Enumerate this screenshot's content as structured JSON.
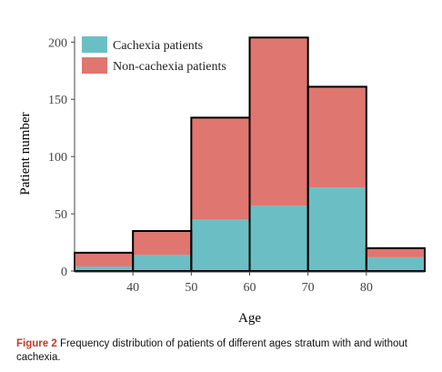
{
  "chart_data": {
    "type": "bar",
    "stacked": true,
    "bins": [
      {
        "from": 30,
        "to": 40
      },
      {
        "from": 40,
        "to": 50
      },
      {
        "from": 50,
        "to": 60
      },
      {
        "from": 60,
        "to": 70
      },
      {
        "from": 70,
        "to": 80
      },
      {
        "from": 80,
        "to": 90
      }
    ],
    "series": [
      {
        "name": "Cachexia patients",
        "values": [
          4,
          14,
          45,
          57,
          73,
          12
        ],
        "color": "#6bbfc4"
      },
      {
        "name": "Non-cachexia patients",
        "values": [
          12,
          21,
          89,
          147,
          88,
          8
        ],
        "color": "#e07670"
      }
    ],
    "xlabel": "Age",
    "ylabel": "Patient number",
    "xticks": [
      "40",
      "50",
      "60",
      "70",
      "80"
    ],
    "xtick_values": [
      40,
      50,
      60,
      70,
      80
    ],
    "yticks": [
      "0",
      "50",
      "100",
      "150",
      "200"
    ],
    "ytick_values": [
      0,
      50,
      100,
      150,
      200
    ],
    "xlim": [
      30,
      90
    ],
    "ylim": [
      0,
      205
    ],
    "grid": false,
    "legend_position": "top-left"
  },
  "caption": {
    "label": "Figure 2",
    "text": "Frequency distribution of patients of different ages stratum with and without cachexia."
  }
}
